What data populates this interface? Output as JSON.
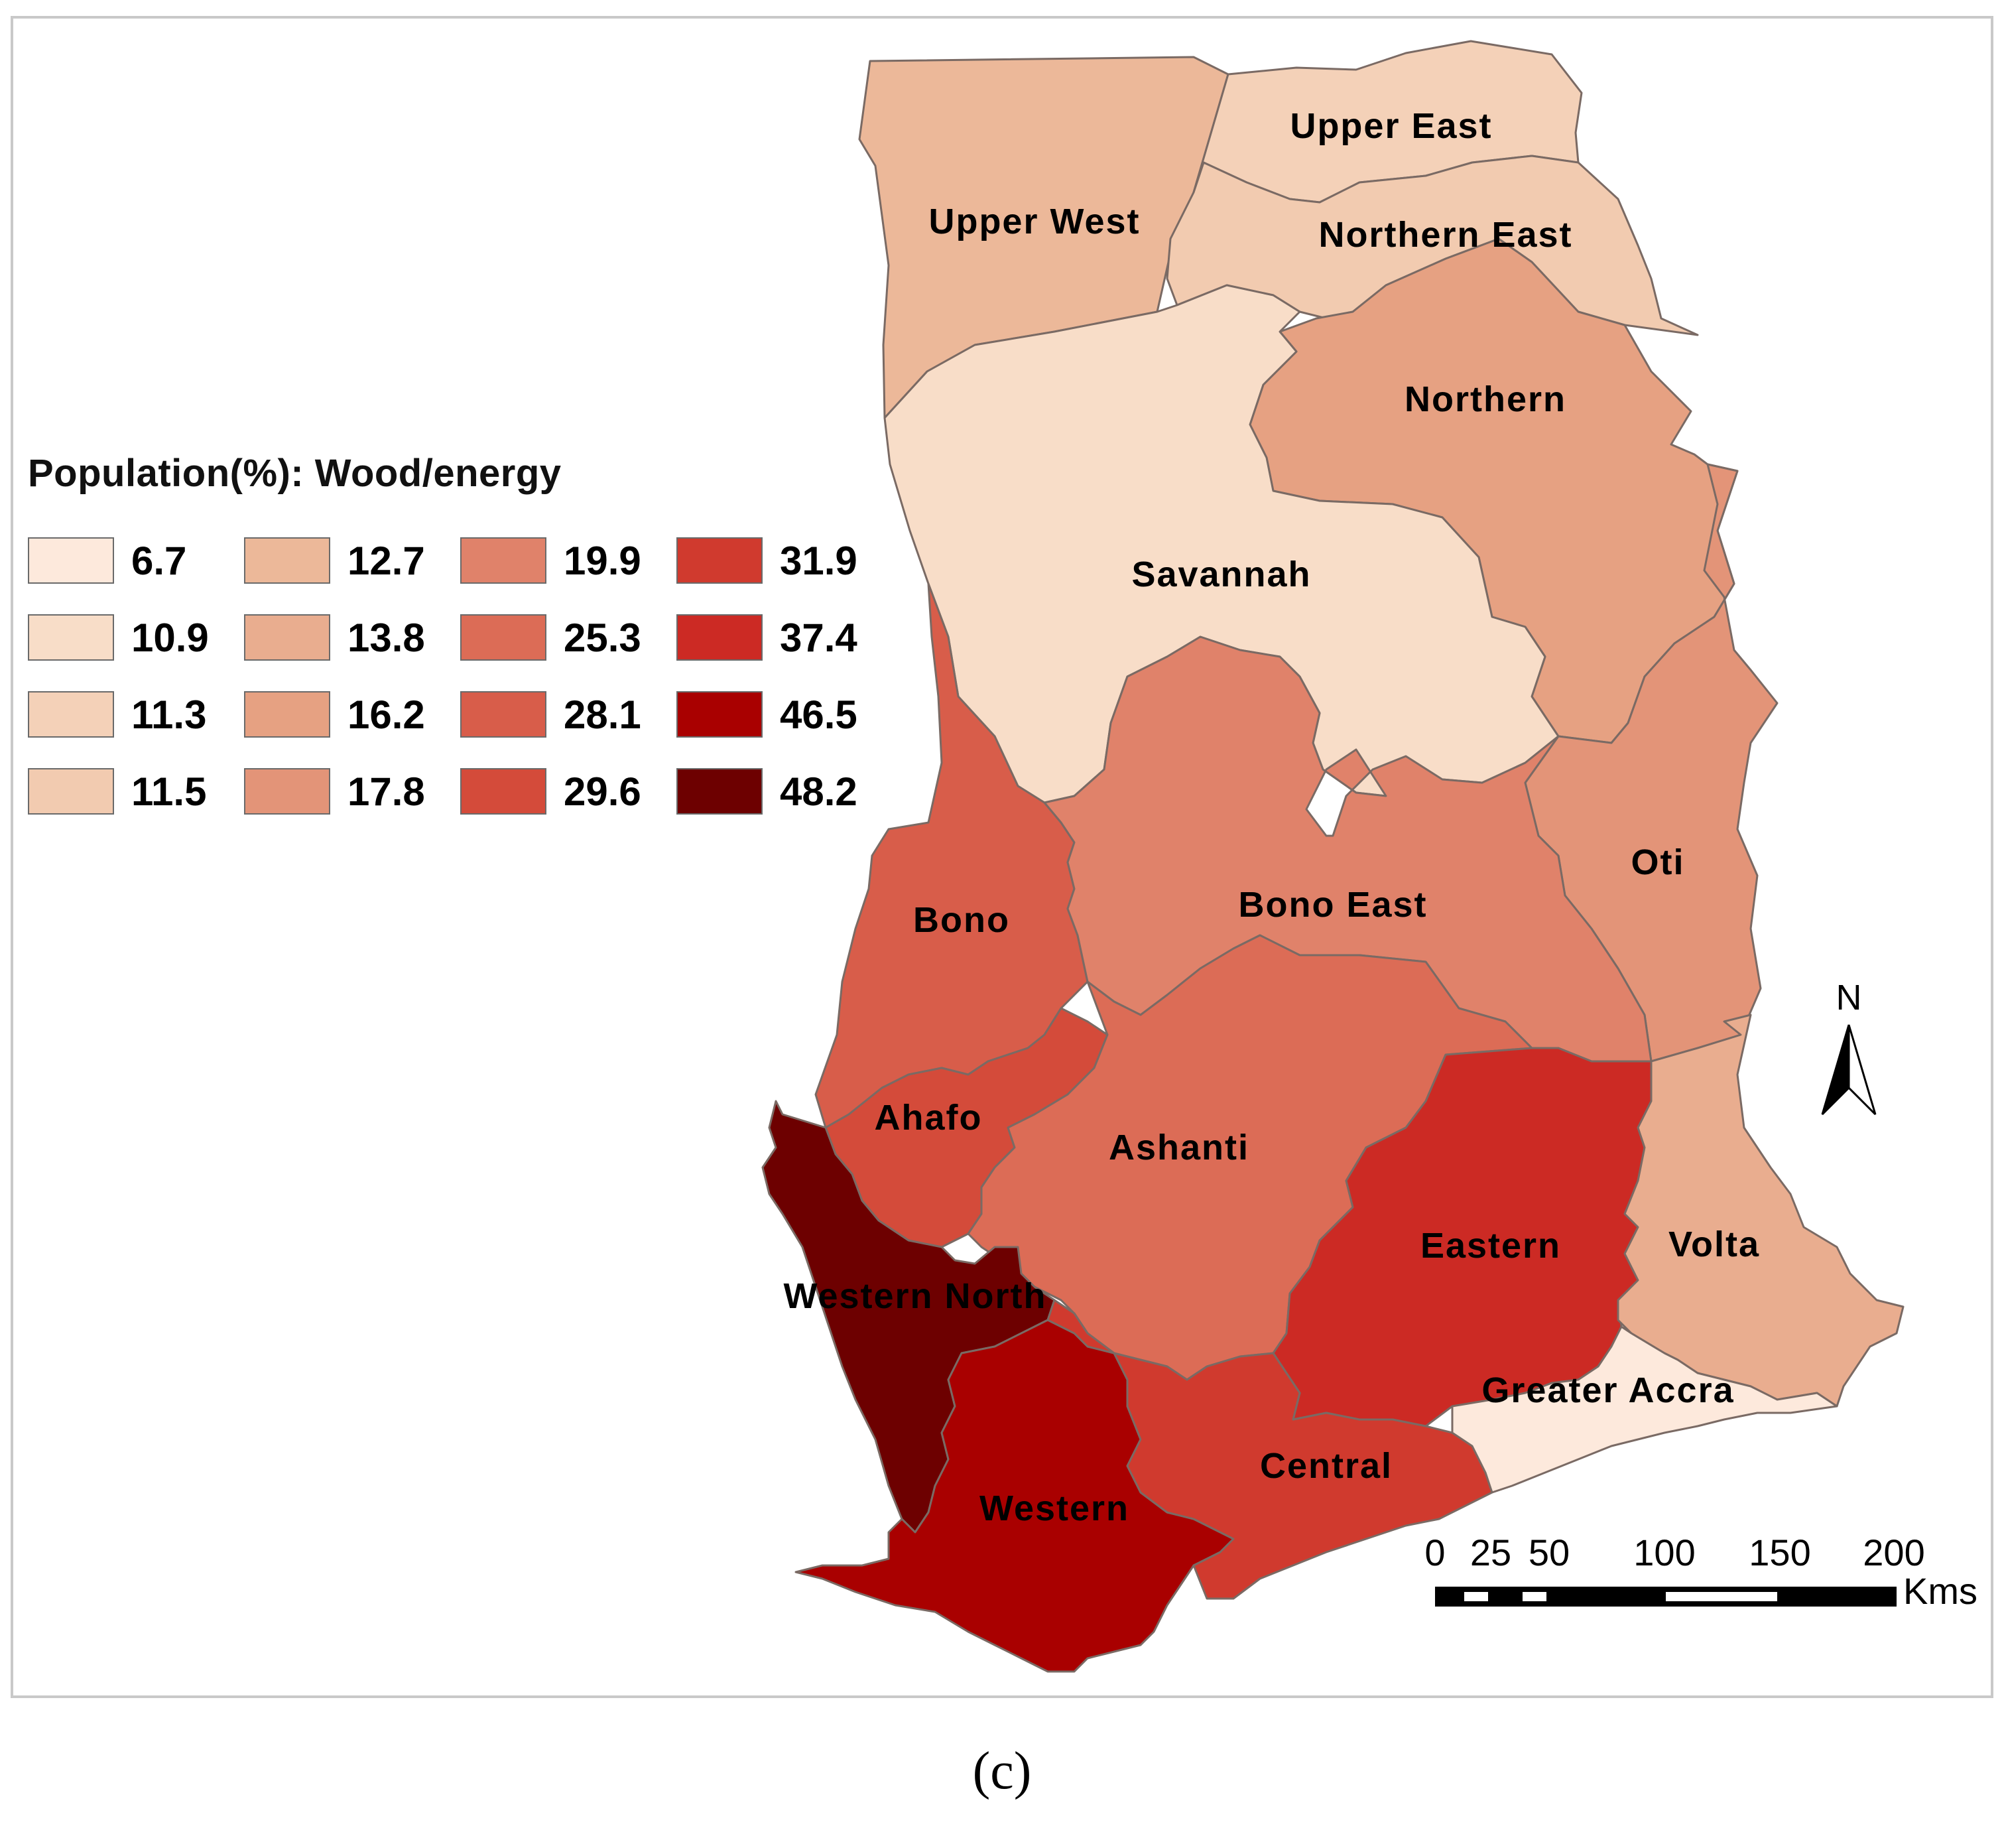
{
  "legend": {
    "title": "Population(%): Wood/energy",
    "items": [
      {
        "label": "6.7",
        "color": "#fde9dc"
      },
      {
        "label": "10.9",
        "color": "#f8ddc8"
      },
      {
        "label": "11.3",
        "color": "#f4d1b8"
      },
      {
        "label": "11.5",
        "color": "#f2cbb0"
      },
      {
        "label": "12.7",
        "color": "#ecb899"
      },
      {
        "label": "13.8",
        "color": "#e9ad8f"
      },
      {
        "label": "16.2",
        "color": "#e6a182"
      },
      {
        "label": "17.8",
        "color": "#e39478"
      },
      {
        "label": "19.9",
        "color": "#e0826a"
      },
      {
        "label": "25.3",
        "color": "#dc6c56"
      },
      {
        "label": "28.1",
        "color": "#d85d4a"
      },
      {
        "label": "29.6",
        "color": "#d44b3a"
      },
      {
        "label": "31.9",
        "color": "#d03a2e"
      },
      {
        "label": "37.4",
        "color": "#cc2a24"
      },
      {
        "label": "46.5",
        "color": "#a90000"
      },
      {
        "label": "48.2",
        "color": "#6d0000"
      }
    ]
  },
  "regions": [
    {
      "name": "Upper West",
      "value": "12.7",
      "color": "#ecb899"
    },
    {
      "name": "Upper East",
      "value": "11.3",
      "color": "#f4d1b8"
    },
    {
      "name": "Northern East",
      "value": "11.5",
      "color": "#f2cbb0"
    },
    {
      "name": "Northern",
      "value": "16.2",
      "color": "#e6a182"
    },
    {
      "name": "Savannah",
      "value": "10.9",
      "color": "#f8ddc8"
    },
    {
      "name": "Oti",
      "value": "17.8",
      "color": "#e39478"
    },
    {
      "name": "Bono",
      "value": "28.1",
      "color": "#d85d4a"
    },
    {
      "name": "Bono East",
      "value": "19.9",
      "color": "#e0826a"
    },
    {
      "name": "Ahafo",
      "value": "29.6",
      "color": "#d44b3a"
    },
    {
      "name": "Ashanti",
      "value": "25.3",
      "color": "#dc6c56"
    },
    {
      "name": "Eastern",
      "value": "37.4",
      "color": "#cc2a24"
    },
    {
      "name": "Volta",
      "value": "13.8",
      "color": "#e9ad8f"
    },
    {
      "name": "Western North",
      "value": "48.2",
      "color": "#6d0000"
    },
    {
      "name": "Western",
      "value": "46.5",
      "color": "#a90000"
    },
    {
      "name": "Central",
      "value": "31.9",
      "color": "#d03a2e"
    },
    {
      "name": "Greater Accra",
      "value": "6.7",
      "color": "#fde9dc"
    }
  ],
  "north_arrow": {
    "label": "N"
  },
  "scale_bar": {
    "ticks": [
      "0",
      "25",
      "50",
      "100",
      "150",
      "200"
    ],
    "unit": "Kms"
  },
  "caption": "(c)"
}
